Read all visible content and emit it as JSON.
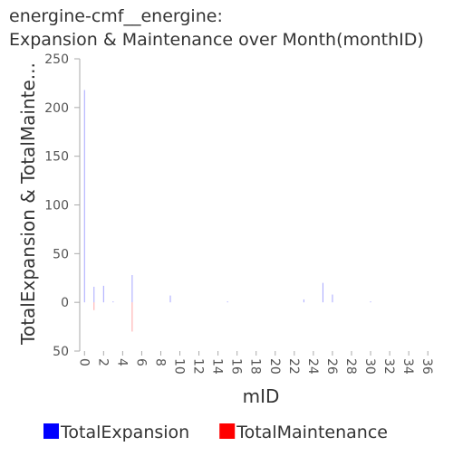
{
  "chart_data": {
    "type": "bar",
    "title": [
      "energine-cmf__energine:",
      "Expansion & Maintenance over Month(monthID)"
    ],
    "x_label": "mID",
    "y_label": "TotalExpansion & TotalMainte...",
    "categories": [
      0,
      null,
      2,
      null,
      4,
      null,
      6,
      null,
      8,
      null,
      10,
      null,
      12,
      null,
      14,
      null,
      16,
      null,
      18,
      null,
      20,
      null,
      22,
      null,
      24,
      null,
      26,
      null,
      28,
      null,
      30,
      null,
      32,
      null,
      34,
      null,
      36,
      null
    ],
    "series": [
      {
        "name": "TotalExpansion",
        "color": "#0000ff",
        "values": [
          218,
          16,
          17,
          1,
          0,
          28,
          0,
          0,
          0,
          7,
          0,
          0,
          0,
          0,
          0,
          1,
          0,
          0,
          0,
          0,
          0,
          0,
          0,
          3,
          0,
          20,
          8,
          0,
          0,
          0,
          1,
          0,
          0,
          0,
          0,
          0,
          0,
          0
        ]
      },
      {
        "name": "TotalMaintenance",
        "color": "#ff0000",
        "values": [
          0,
          -8,
          0,
          0,
          0,
          -30,
          0,
          0,
          0,
          0,
          0,
          0,
          0,
          0,
          0,
          0,
          0,
          0,
          0,
          0,
          0,
          0,
          0,
          0,
          0,
          0,
          0,
          0,
          0,
          0,
          0,
          0,
          0,
          0,
          0,
          0,
          0,
          0
        ]
      }
    ],
    "ylim": [
      -50,
      250
    ],
    "yticks": [
      {
        "value": -50,
        "label": "50"
      },
      0,
      50,
      100,
      150,
      200,
      250
    ],
    "legend": "bottom"
  }
}
